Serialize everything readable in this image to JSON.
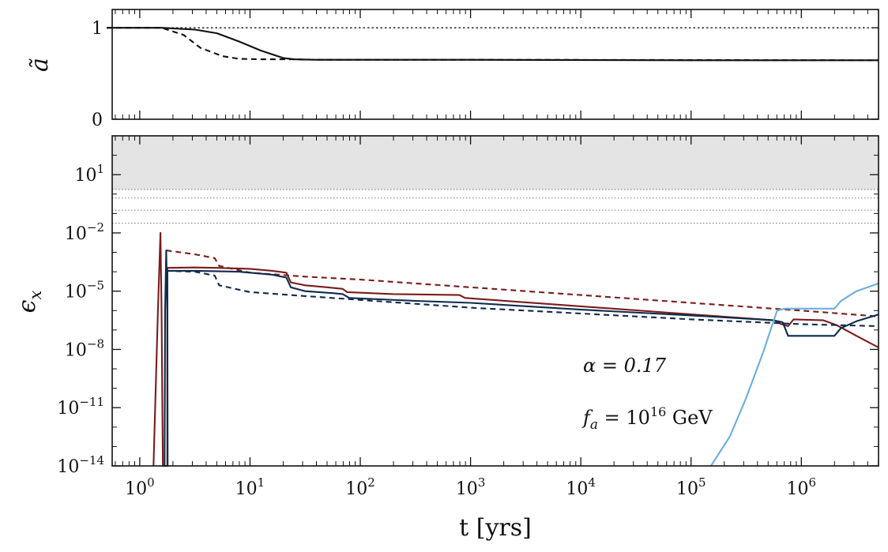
{
  "chart_data": [
    {
      "panel": "top",
      "type": "line",
      "ylabel": "ã",
      "ylim": [
        0,
        1.2
      ],
      "x_scale": "log",
      "xlim_log10": [
        -0.25,
        6.7
      ],
      "y_tick_labels": [
        {
          "value": 0,
          "label": "0"
        },
        {
          "value": 1,
          "label": "1"
        }
      ],
      "series": [
        {
          "name": "a-tilde-solid",
          "color": "#111111",
          "dash": "solid",
          "points": [
            [
              -0.3,
              1.0
            ],
            [
              0.2,
              1.0
            ],
            [
              0.5,
              0.98
            ],
            [
              0.7,
              0.94
            ],
            [
              0.9,
              0.85
            ],
            [
              1.1,
              0.75
            ],
            [
              1.3,
              0.67
            ],
            [
              1.4,
              0.655
            ],
            [
              1.6,
              0.65
            ],
            [
              3.0,
              0.65
            ],
            [
              5.0,
              0.645
            ],
            [
              6.7,
              0.645
            ]
          ]
        },
        {
          "name": "a-tilde-dashed",
          "color": "#111111",
          "dash": "dashed",
          "points": [
            [
              -0.3,
              1.0
            ],
            [
              0.2,
              1.0
            ],
            [
              0.4,
              0.92
            ],
            [
              0.55,
              0.78
            ],
            [
              0.75,
              0.69
            ],
            [
              0.9,
              0.66
            ],
            [
              1.1,
              0.655
            ],
            [
              1.4,
              0.655
            ],
            [
              1.6,
              0.65
            ],
            [
              3.0,
              0.65
            ],
            [
              6.7,
              0.645
            ]
          ]
        },
        {
          "name": "reference-one",
          "color": "#111111",
          "dash": "dotted",
          "points": [
            [
              -0.3,
              1.0
            ],
            [
              6.7,
              1.0
            ]
          ]
        }
      ]
    },
    {
      "panel": "bottom",
      "type": "line",
      "ylabel": "ϵx",
      "xlabel": "t [yrs]",
      "x_scale": "log",
      "y_scale": "log",
      "xlim_log10": [
        -0.25,
        6.7
      ],
      "ylim_log10": [
        -14,
        3
      ],
      "x_tick_labels": [
        {
          "exp": 0,
          "base": "10",
          "sup": "0"
        },
        {
          "exp": 1,
          "base": "10",
          "sup": "1"
        },
        {
          "exp": 2,
          "base": "10",
          "sup": "2"
        },
        {
          "exp": 3,
          "base": "10",
          "sup": "3"
        },
        {
          "exp": 4,
          "base": "10",
          "sup": "4"
        },
        {
          "exp": 5,
          "base": "10",
          "sup": "5"
        },
        {
          "exp": 6,
          "base": "10",
          "sup": "6"
        }
      ],
      "y_tick_labels": [
        {
          "exp": 1,
          "base": "10",
          "sup": "1"
        },
        {
          "exp": -2,
          "base": "10",
          "sup": "−2"
        },
        {
          "exp": -5,
          "base": "10",
          "sup": "−5"
        },
        {
          "exp": -8,
          "base": "10",
          "sup": "−8"
        },
        {
          "exp": -11,
          "base": "10",
          "sup": "−11"
        },
        {
          "exp": -14,
          "base": "10",
          "sup": "−14"
        }
      ],
      "shaded_region_log10": [
        0.24,
        3
      ],
      "dotted_reference_lines_log10": [
        0.24,
        -0.2,
        -0.83,
        -1.5
      ],
      "annotations": [
        {
          "name": "alpha-annotation",
          "text": "α = 0.17"
        },
        {
          "name": "fa-annotation",
          "text": "fa = 10^16 GeV"
        }
      ],
      "series": [
        {
          "name": "red-solid",
          "color": "#7a1c1c",
          "dash": "solid",
          "points": [
            [
              0.125,
              -14.2
            ],
            [
              0.165,
              -6
            ],
            [
              0.188,
              -2.0
            ],
            [
              0.198,
              -6
            ],
            [
              0.205,
              -11
            ],
            [
              0.21,
              -14.2
            ],
            [
              0.25,
              -14.2
            ],
            [
              0.25,
              -3.8
            ],
            [
              0.5,
              -3.78
            ],
            [
              0.7,
              -3.8
            ],
            [
              1.0,
              -3.85
            ],
            [
              1.2,
              -3.95
            ],
            [
              1.33,
              -4.05
            ],
            [
              1.37,
              -4.55
            ],
            [
              1.5,
              -4.7
            ],
            [
              1.7,
              -4.8
            ],
            [
              1.84,
              -4.88
            ],
            [
              1.88,
              -5.05
            ],
            [
              2.3,
              -5.15
            ],
            [
              2.9,
              -5.2
            ],
            [
              2.95,
              -5.35
            ],
            [
              5.75,
              -6.5
            ],
            [
              5.82,
              -6.7
            ],
            [
              5.88,
              -6.8
            ],
            [
              5.93,
              -6.45
            ],
            [
              6.2,
              -6.5
            ],
            [
              6.32,
              -6.75
            ],
            [
              6.5,
              -7.3
            ],
            [
              6.7,
              -7.9
            ]
          ]
        },
        {
          "name": "red-dashed",
          "color": "#7a1c1c",
          "dash": "dashed",
          "points": [
            [
              0.24,
              -2.9
            ],
            [
              0.5,
              -3.1
            ],
            [
              0.68,
              -3.3
            ],
            [
              0.72,
              -3.7
            ],
            [
              1.0,
              -4.05
            ],
            [
              1.5,
              -4.25
            ],
            [
              2.0,
              -4.4
            ],
            [
              3.0,
              -4.8
            ],
            [
              4.0,
              -5.2
            ],
            [
              5.0,
              -5.6
            ],
            [
              6.0,
              -6.0
            ],
            [
              6.7,
              -6.3
            ]
          ]
        },
        {
          "name": "navy-solid",
          "color": "#0f2a4d",
          "dash": "solid",
          "points": [
            [
              0.225,
              -14.2
            ],
            [
              0.23,
              -6
            ],
            [
              0.24,
              -2.9
            ],
            [
              0.25,
              -6
            ],
            [
              0.253,
              -14.2
            ],
            [
              0.25,
              -3.95
            ],
            [
              0.5,
              -3.95
            ],
            [
              0.9,
              -4.0
            ],
            [
              1.2,
              -4.15
            ],
            [
              1.33,
              -4.3
            ],
            [
              1.37,
              -4.8
            ],
            [
              1.5,
              -5.0
            ],
            [
              1.75,
              -5.1
            ],
            [
              1.84,
              -5.15
            ],
            [
              1.9,
              -5.35
            ],
            [
              2.5,
              -5.5
            ],
            [
              3.0,
              -5.6
            ],
            [
              4.0,
              -5.95
            ],
            [
              5.0,
              -6.25
            ],
            [
              5.75,
              -6.5
            ],
            [
              5.83,
              -6.6
            ],
            [
              5.88,
              -7.3
            ],
            [
              6.3,
              -7.3
            ],
            [
              6.36,
              -6.9
            ],
            [
              6.5,
              -6.55
            ],
            [
              6.7,
              -6.2
            ]
          ]
        },
        {
          "name": "navy-dashed",
          "color": "#0f2a4d",
          "dash": "dashed",
          "points": [
            [
              0.24,
              -3.95
            ],
            [
              0.5,
              -4.0
            ],
            [
              0.68,
              -4.2
            ],
            [
              0.72,
              -4.7
            ],
            [
              1.0,
              -5.05
            ],
            [
              1.5,
              -5.25
            ],
            [
              2.0,
              -5.45
            ],
            [
              3.0,
              -5.85
            ],
            [
              4.0,
              -6.15
            ],
            [
              5.0,
              -6.45
            ],
            [
              6.0,
              -6.7
            ],
            [
              6.7,
              -6.8
            ]
          ]
        },
        {
          "name": "lightblue-solid",
          "color": "#6aaedc",
          "dash": "solid",
          "points": [
            [
              5.18,
              -14.2
            ],
            [
              5.35,
              -12.5
            ],
            [
              5.5,
              -10.5
            ],
            [
              5.65,
              -8.2
            ],
            [
              5.78,
              -6.0
            ],
            [
              5.85,
              -5.9
            ],
            [
              6.3,
              -5.9
            ],
            [
              6.36,
              -5.5
            ],
            [
              6.5,
              -5.0
            ],
            [
              6.7,
              -4.6
            ]
          ]
        }
      ]
    }
  ]
}
